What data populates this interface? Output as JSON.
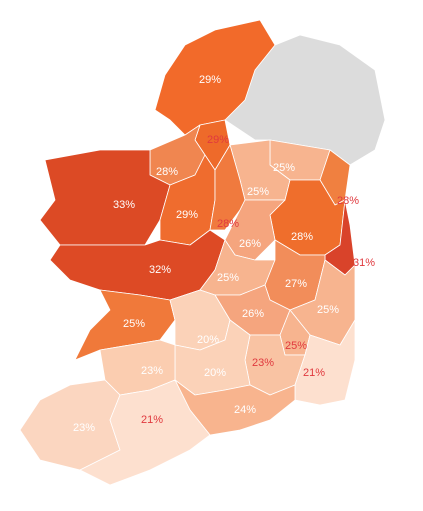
{
  "chart_data": {
    "type": "choropleth",
    "values": [
      29,
      29,
      28,
      25,
      25,
      33,
      29,
      28,
      28,
      28,
      26,
      31,
      32,
      25,
      27,
      26,
      25,
      25,
      20,
      25,
      23,
      20,
      21,
      23,
      24,
      23,
      21
    ],
    "value_labels": [
      "29%",
      "29%",
      "28%",
      "25%",
      "25%",
      "33%",
      "29%",
      "28%",
      "28%",
      "28%",
      "26%",
      "31%",
      "32%",
      "25%",
      "27%",
      "26%",
      "25%",
      "25%",
      "20%",
      "25%",
      "23%",
      "20%",
      "21%",
      "23%",
      "24%",
      "23%",
      "21%"
    ],
    "colors": [
      "#f26a2a",
      "#ee6a2a",
      "#f08650",
      "#f7b48f",
      "#f7b48f",
      "#dc4a25",
      "#ef6c2e",
      "#f07a3e",
      "#f08040",
      "#ef6e2c",
      "#f5a57e",
      "#d9432a",
      "#dd4a25",
      "#f7b48f",
      "#f28d5a",
      "#f5a57e",
      "#f7b48f",
      "#f0793a",
      "#fbd2b8",
      "#f7b48f",
      "#f9c3a3",
      "#fbd2b8",
      "#fde0cf",
      "#fbcdb0",
      "#f8b48e",
      "#fbd6c0",
      "#fde0cf"
    ],
    "label_colors": [
      "#ffffff",
      "#e0393e",
      "#ffffff",
      "#ffffff",
      "#ffffff",
      "#ffffff",
      "#ffffff",
      "#e0393e",
      "#e0393e",
      "#ffffff",
      "#ffffff",
      "#e0393e",
      "#ffffff",
      "#ffffff",
      "#ffffff",
      "#ffffff",
      "#ffffff",
      "#ffffff",
      "#ffffff",
      "#e0393e",
      "#e0393e",
      "#ffffff",
      "#e0393e",
      "#ffffff",
      "#ffffff",
      "#ffffff",
      "#e0393e"
    ]
  }
}
